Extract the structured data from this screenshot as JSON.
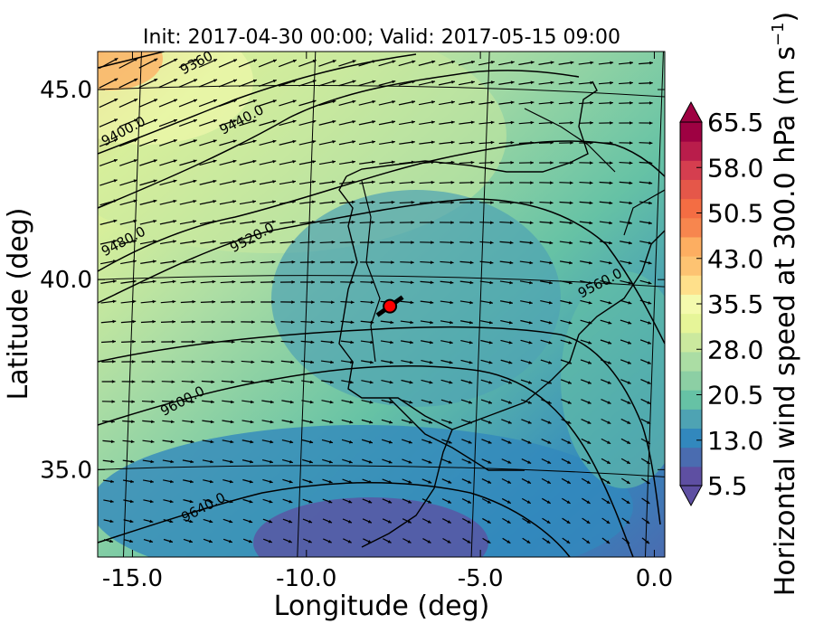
{
  "chart_data": {
    "type": "heatmap",
    "title": "Init: 2017-04-30 00:00; Valid: 2017-05-15 09:00",
    "xlabel": "Longitude (deg)",
    "ylabel": "Latitude (deg)",
    "xlim": [
      -16.0,
      0.3
    ],
    "ylim": [
      32.7,
      46.0
    ],
    "x_ticks": [
      -15.0,
      -10.0,
      -5.0,
      0.0
    ],
    "x_tick_labels": [
      "-15.0",
      "-10.0",
      "-5.0",
      "0.0"
    ],
    "y_ticks": [
      35.0,
      40.0,
      45.0
    ],
    "y_tick_labels": [
      "35.0",
      "40.0",
      "45.0"
    ],
    "colorbar": {
      "label": "Horizontal wind speed at 300.0 hPa (m s",
      "label_exponent": "−1",
      "label_suffix": ")",
      "min": 5.5,
      "max": 65.5,
      "tick_values": [
        5.5,
        13.0,
        20.5,
        28.0,
        35.5,
        43.0,
        50.5,
        58.0,
        65.5
      ],
      "tick_labels": [
        "5.5",
        "13.0",
        "20.5",
        "28.0",
        "35.5",
        "43.0",
        "50.5",
        "58.0",
        "65.5"
      ],
      "extend": "both",
      "colors": [
        "#5e4fa2",
        "#4a6cb0",
        "#3288bd",
        "#4ea3b3",
        "#66c2a5",
        "#8ccfa4",
        "#abdda4",
        "#cbe99e",
        "#e6f598",
        "#f4faad",
        "#fee08b",
        "#fdc372",
        "#fdae61",
        "#f7864e",
        "#f46d43",
        "#e55749",
        "#d53e4f",
        "#b91d4b",
        "#9e0142"
      ]
    },
    "contour_labels": [
      {
        "text": "9360",
        "lon": -13.1,
        "lat": 45.6
      },
      {
        "text": "9400.0",
        "lon": -15.2,
        "lat": 43.8
      },
      {
        "text": "9440.0",
        "lon": -11.8,
        "lat": 44.1
      },
      {
        "text": "9480.0",
        "lon": -15.2,
        "lat": 40.9
      },
      {
        "text": "9520.0",
        "lon": -11.5,
        "lat": 41.0
      },
      {
        "text": "9560.0",
        "lon": -1.5,
        "lat": 39.8
      },
      {
        "text": "9600.0",
        "lon": -13.5,
        "lat": 36.7
      },
      {
        "text": "9640.0",
        "lon": -12.9,
        "lat": 33.9
      }
    ],
    "marker": {
      "lon": -7.6,
      "lat": 39.3,
      "color": "#ff0000"
    },
    "colors": {
      "marker_fill": "#ff0000",
      "contour": "#000000",
      "coast": "#000000",
      "grid": "#000000"
    }
  }
}
